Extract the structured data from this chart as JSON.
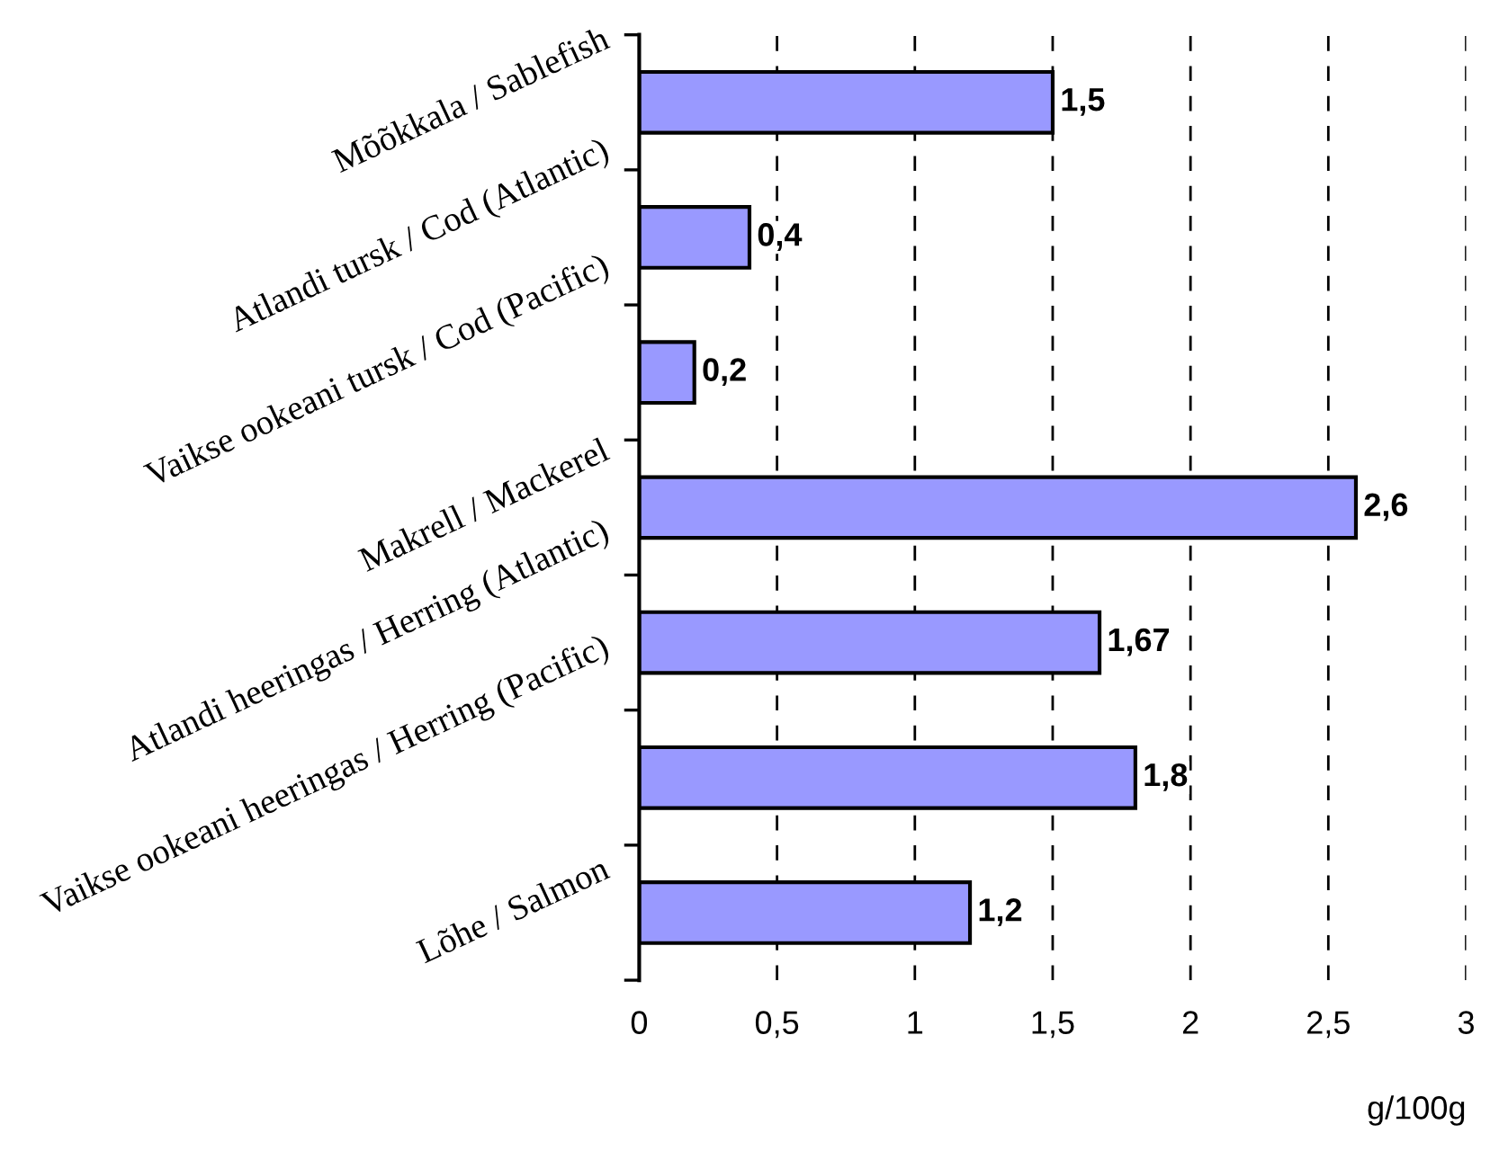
{
  "chart_data": {
    "type": "bar",
    "orientation": "horizontal",
    "xlabel": "g/100g",
    "categories": [
      "Mõõkkala / Sablefish",
      "Atlandi tursk / Cod (Atlantic)",
      "Vaikse ookeani tursk / Cod (Pacific)",
      "Makrell / Mackerel",
      "Atlandi heeringas / Herring (Atlantic)",
      "Vaikse ookeani heeringas / Herring (Pacific)",
      "Lõhe / Salmon"
    ],
    "values": [
      1.5,
      0.4,
      0.2,
      2.6,
      1.67,
      1.8,
      1.2
    ],
    "value_labels": [
      "1,5",
      "0,4",
      "0,2",
      "2,6",
      "1,67",
      "1,8",
      "1,2"
    ],
    "color": "#9999ff",
    "xlim": [
      0,
      3
    ],
    "xticks": [
      0,
      {
        "value": 0.5,
        "label": "0,5"
      },
      1,
      {
        "value": 1.5,
        "label": "1,5"
      },
      2,
      {
        "value": 2.5,
        "label": "2,5"
      },
      3
    ],
    "grid": "x",
    "line_style": "dashed"
  }
}
